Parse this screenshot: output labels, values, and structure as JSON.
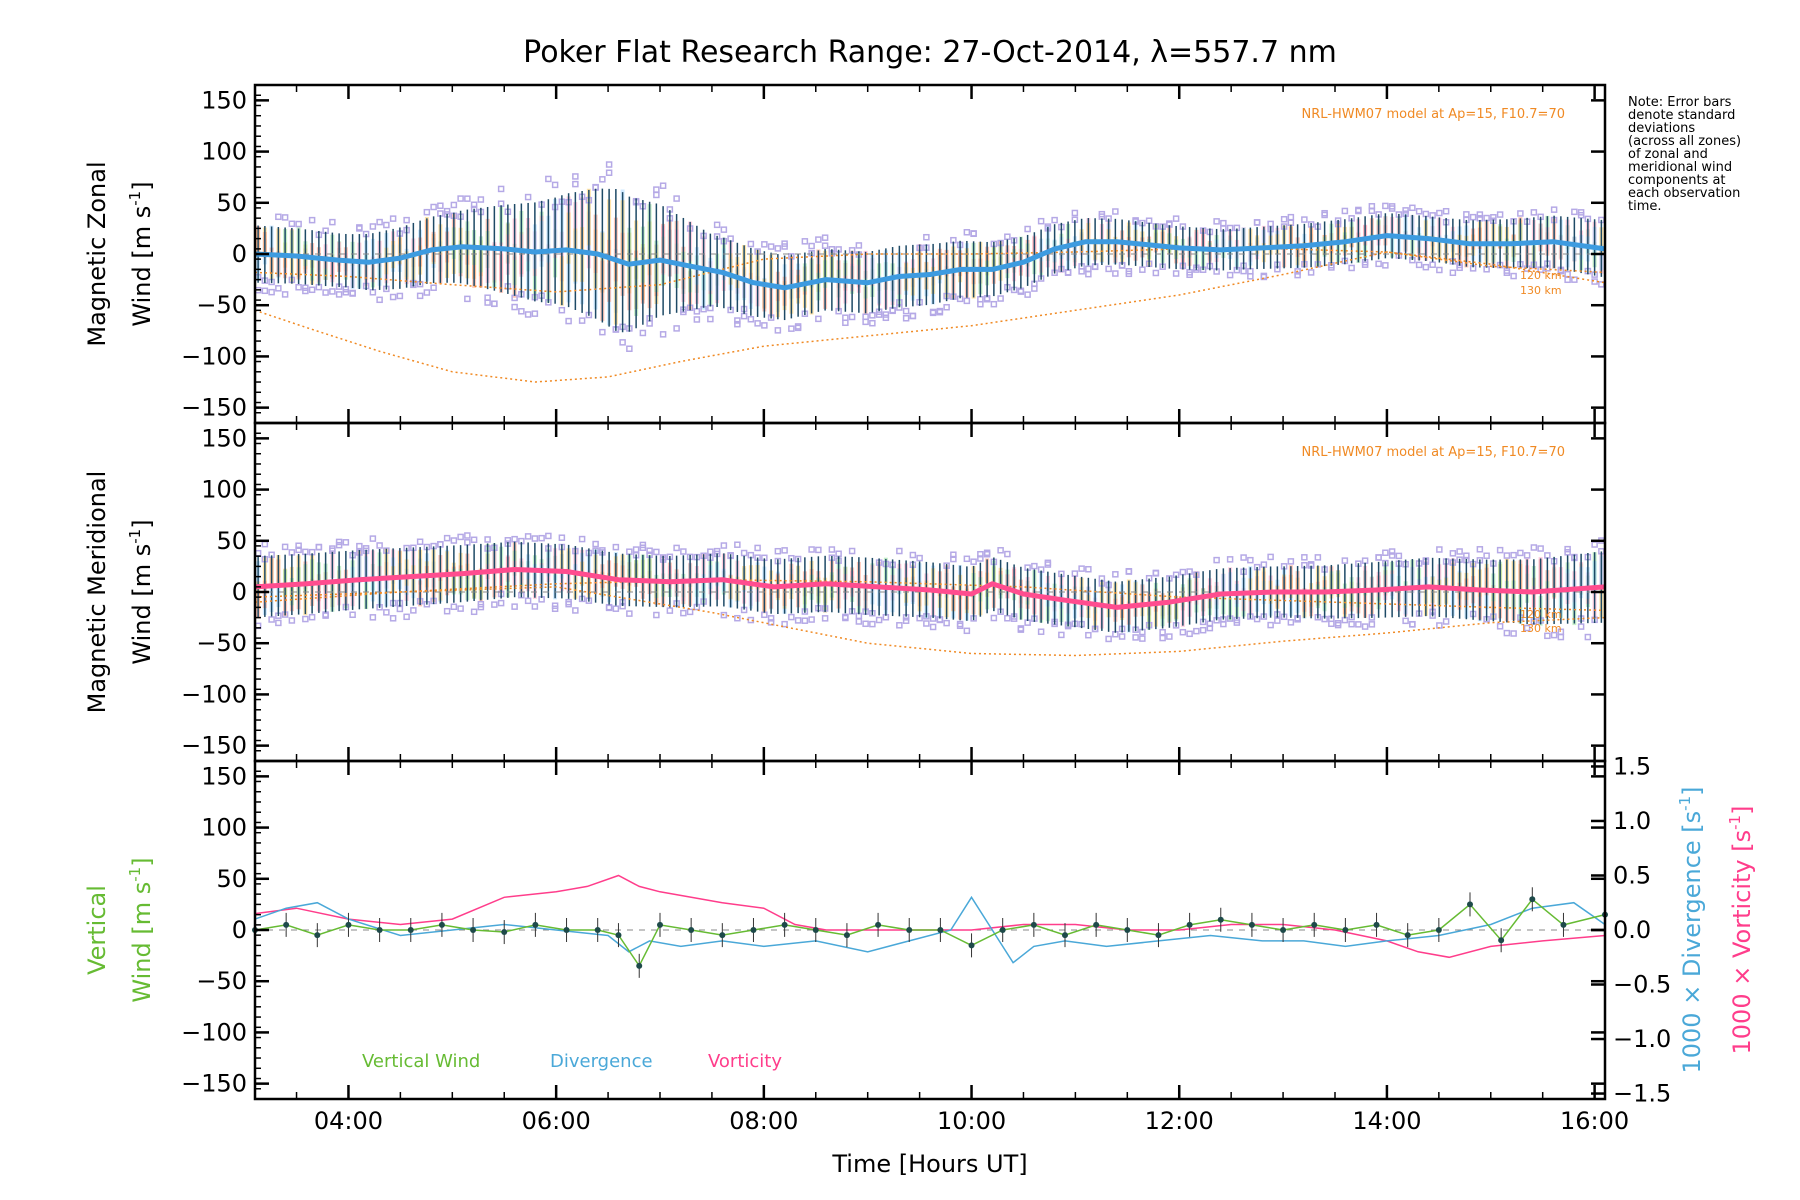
{
  "figure": {
    "title": "Poker Flat Research Range: 27-Oct-2014, λ=557.7 nm",
    "xlabel": "Time [Hours UT]",
    "note": [
      "Note: Error bars",
      "denote standard",
      "deviations",
      "(across all zones)",
      "of zonal and",
      "meridional wind",
      "components at",
      "each observation",
      "time."
    ]
  },
  "colors": {
    "zonal": "#3d9be0",
    "meridional": "#ff4d8f",
    "vertical": "#66bb33",
    "divergence": "#4aa8d8",
    "vorticity": "#ff3d8b",
    "model": "#f08a24",
    "scatter": "#b5a9e6",
    "errorbar": "#1e4a66"
  },
  "panels": {
    "zonal": {
      "ylabel_line1": "Magnetic Zonal",
      "ylabel_line2": "Wind",
      "ylabel_units": "[m s",
      "ylabel_sup": "-1",
      "ylabel_close": "]",
      "model_label": "NRL-HWM07 model at Ap=15, F10.7=70",
      "model_alt_labels": [
        "120 km",
        "130 km"
      ]
    },
    "meridional": {
      "ylabel_line1": "Magnetic Meridional",
      "ylabel_line2": "Wind",
      "ylabel_units": "[m s",
      "ylabel_sup": "-1",
      "ylabel_close": "]",
      "model_label": "NRL-HWM07 model at Ap=15, F10.7=70",
      "model_alt_labels": [
        "120 km",
        "130 km"
      ]
    },
    "vertical": {
      "ylabel_line1": "Vertical",
      "ylabel_line2": "Wind",
      "ylabel_units": "[m s",
      "ylabel_sup": "-1",
      "ylabel_close": "]",
      "right_label_div": "1000 × Divergence",
      "right_label_vort": "1000 × Vorticity",
      "right_units": "[s",
      "right_sup": "-1",
      "right_close": "]",
      "legend": [
        "Vertical Wind",
        "Divergence",
        "Vorticity"
      ]
    }
  },
  "chart_data": [
    {
      "type": "line",
      "panel": "zonal",
      "xlabel": "",
      "ylabel": "Magnetic Zonal Wind [m s-1]",
      "xlim": [
        3.1,
        16.1
      ],
      "ylim": [
        -165,
        165
      ],
      "xticks": [
        "04:00",
        "06:00",
        "08:00",
        "10:00",
        "12:00",
        "14:00",
        "16:00"
      ],
      "xtick_values": [
        4,
        6,
        8,
        10,
        12,
        14,
        16
      ],
      "yticks": [
        -150,
        -100,
        -50,
        0,
        50,
        100,
        150
      ],
      "series": [
        {
          "role": "mean",
          "x": [
            3.1,
            3.5,
            3.9,
            4.2,
            4.5,
            4.8,
            5.1,
            5.5,
            5.8,
            6.1,
            6.4,
            6.7,
            7.0,
            7.3,
            7.6,
            7.9,
            8.2,
            8.6,
            9.0,
            9.3,
            9.6,
            9.9,
            10.2,
            10.5,
            10.8,
            11.1,
            11.4,
            11.7,
            12.0,
            12.4,
            12.8,
            13.2,
            13.6,
            14.0,
            14.4,
            14.8,
            15.2,
            15.6,
            16.1
          ],
          "y": [
            0,
            -2,
            -6,
            -8,
            -4,
            4,
            7,
            5,
            2,
            4,
            0,
            -10,
            -6,
            -12,
            -18,
            -28,
            -33,
            -25,
            -28,
            -22,
            -20,
            -15,
            -15,
            -8,
            5,
            12,
            12,
            9,
            6,
            4,
            6,
            8,
            12,
            18,
            15,
            10,
            10,
            12,
            5
          ]
        },
        {
          "role": "error_halfwidth",
          "x": [
            3.1,
            4.0,
            5.0,
            6.0,
            6.6,
            7.5,
            8.5,
            9.5,
            10.5,
            11.5,
            12.5,
            13.5,
            14.5,
            15.5,
            16.1
          ],
          "y": [
            28,
            26,
            34,
            52,
            70,
            35,
            30,
            30,
            25,
            22,
            20,
            22,
            22,
            25,
            28
          ]
        },
        {
          "role": "model_120km",
          "x": [
            3.1,
            4.0,
            5.0,
            6.0,
            7.0,
            8.0,
            9.0,
            10.0,
            11.0,
            12.0,
            13.0,
            14.0,
            15.0,
            16.1
          ],
          "y": [
            -18,
            -22,
            -30,
            -37,
            -30,
            -5,
            0,
            0,
            2,
            5,
            5,
            2,
            -12,
            -18
          ]
        },
        {
          "role": "model_130km",
          "x": [
            3.1,
            3.6,
            4.3,
            5.0,
            5.8,
            6.5,
            7.2,
            8.0,
            9.0,
            10.0,
            11.0,
            12.0,
            13.0,
            14.0,
            15.0,
            16.1
          ],
          "y": [
            -55,
            -72,
            -95,
            -115,
            -125,
            -120,
            -105,
            -90,
            -80,
            -70,
            -55,
            -40,
            -20,
            2,
            -10,
            -28
          ]
        }
      ]
    },
    {
      "type": "line",
      "panel": "meridional",
      "xlabel": "",
      "ylabel": "Magnetic Meridional Wind [m s-1]",
      "xlim": [
        3.1,
        16.1
      ],
      "ylim": [
        -165,
        165
      ],
      "xticks": [
        "04:00",
        "06:00",
        "08:00",
        "10:00",
        "12:00",
        "14:00",
        "16:00"
      ],
      "xtick_values": [
        4,
        6,
        8,
        10,
        12,
        14,
        16
      ],
      "yticks": [
        -150,
        -100,
        -50,
        0,
        50,
        100,
        150
      ],
      "series": [
        {
          "role": "mean",
          "x": [
            3.1,
            3.6,
            4.1,
            4.6,
            5.1,
            5.6,
            6.1,
            6.6,
            7.1,
            7.6,
            8.1,
            8.6,
            9.1,
            9.6,
            10.0,
            10.2,
            10.5,
            10.9,
            11.4,
            11.9,
            12.4,
            12.9,
            13.4,
            13.9,
            14.4,
            14.9,
            15.4,
            16.1
          ],
          "y": [
            5,
            8,
            12,
            15,
            18,
            22,
            20,
            12,
            10,
            12,
            5,
            8,
            5,
            2,
            -2,
            8,
            -2,
            -8,
            -15,
            -10,
            -2,
            0,
            0,
            2,
            5,
            2,
            0,
            5
          ]
        },
        {
          "role": "error_halfwidth",
          "x": [
            3.1,
            5.0,
            7.0,
            9.0,
            11.0,
            13.0,
            15.0,
            16.1
          ],
          "y": [
            30,
            28,
            25,
            28,
            25,
            25,
            30,
            35
          ]
        },
        {
          "role": "model_120km",
          "x": [
            3.1,
            4.5,
            6.0,
            7.5,
            9.0,
            10.5,
            12.0,
            13.5,
            15.0,
            16.1
          ],
          "y": [
            -5,
            0,
            8,
            12,
            10,
            5,
            -5,
            -10,
            -15,
            -18
          ]
        },
        {
          "role": "model_130km",
          "x": [
            3.1,
            4.5,
            6.0,
            7.5,
            9.0,
            10.0,
            11.0,
            12.0,
            13.0,
            14.0,
            15.0,
            16.1
          ],
          "y": [
            -10,
            0,
            5,
            -20,
            -50,
            -60,
            -62,
            -58,
            -48,
            -40,
            -30,
            -25
          ]
        }
      ]
    },
    {
      "type": "line",
      "panel": "vertical",
      "xlabel": "Time [Hours UT]",
      "ylabel": "Vertical Wind [m s-1]",
      "y2label": "1000 × Divergence / 1000 × Vorticity [s-1]",
      "xlim": [
        3.1,
        16.1
      ],
      "ylim": [
        -165,
        165
      ],
      "y2lim": [
        -1.55,
        1.55
      ],
      "xticks": [
        "04:00",
        "06:00",
        "08:00",
        "10:00",
        "12:00",
        "14:00",
        "16:00"
      ],
      "xtick_values": [
        4,
        6,
        8,
        10,
        12,
        14,
        16
      ],
      "yticks": [
        -150,
        -100,
        -50,
        0,
        50,
        100,
        150
      ],
      "y2ticks": [
        -1.5,
        -1.0,
        -0.5,
        0.0,
        0.5,
        1.0,
        1.5
      ],
      "series": [
        {
          "name": "Vorticity",
          "axis": "right",
          "x": [
            3.1,
            3.5,
            4.0,
            4.5,
            5.0,
            5.5,
            6.0,
            6.3,
            6.6,
            6.8,
            7.0,
            7.3,
            7.6,
            8.0,
            8.3,
            8.6,
            9.0,
            9.5,
            10.0,
            10.5,
            11.0,
            11.5,
            12.0,
            12.5,
            13.0,
            13.5,
            14.0,
            14.3,
            14.6,
            15.0,
            15.5,
            16.1
          ],
          "y": [
            0.15,
            0.2,
            0.1,
            0.05,
            0.1,
            0.3,
            0.35,
            0.4,
            0.5,
            0.4,
            0.35,
            0.3,
            0.25,
            0.2,
            0.05,
            0.0,
            0.0,
            0.0,
            0.0,
            0.05,
            0.05,
            0.0,
            0.0,
            0.05,
            0.05,
            0.0,
            -0.1,
            -0.2,
            -0.25,
            -0.15,
            -0.1,
            -0.05
          ]
        },
        {
          "name": "Divergence",
          "axis": "right",
          "x": [
            3.1,
            3.4,
            3.7,
            4.0,
            4.5,
            5.0,
            5.5,
            6.0,
            6.5,
            6.7,
            6.9,
            7.2,
            7.6,
            8.0,
            8.5,
            9.0,
            9.4,
            9.8,
            10.0,
            10.2,
            10.4,
            10.6,
            10.9,
            11.3,
            11.8,
            12.3,
            12.8,
            13.2,
            13.6,
            14.0,
            14.5,
            15.0,
            15.4,
            15.8,
            16.1
          ],
          "y": [
            0.1,
            0.2,
            0.25,
            0.1,
            -0.05,
            0.0,
            0.05,
            0.0,
            -0.05,
            -0.2,
            -0.1,
            -0.15,
            -0.1,
            -0.15,
            -0.1,
            -0.2,
            -0.1,
            0.0,
            0.3,
            0.0,
            -0.3,
            -0.15,
            -0.1,
            -0.15,
            -0.1,
            -0.05,
            -0.1,
            -0.1,
            -0.15,
            -0.1,
            -0.05,
            0.05,
            0.2,
            0.25,
            0.05
          ]
        },
        {
          "name": "Vertical Wind",
          "axis": "left",
          "x": [
            3.1,
            3.4,
            3.7,
            4.0,
            4.3,
            4.6,
            4.9,
            5.2,
            5.5,
            5.8,
            6.1,
            6.4,
            6.6,
            6.8,
            7.0,
            7.3,
            7.6,
            7.9,
            8.2,
            8.5,
            8.8,
            9.1,
            9.4,
            9.7,
            10.0,
            10.3,
            10.6,
            10.9,
            11.2,
            11.5,
            11.8,
            12.1,
            12.4,
            12.7,
            13.0,
            13.3,
            13.6,
            13.9,
            14.2,
            14.5,
            14.8,
            15.1,
            15.4,
            15.7,
            16.1
          ],
          "y": [
            0,
            5,
            -5,
            5,
            0,
            0,
            5,
            0,
            -2,
            5,
            0,
            0,
            -5,
            -35,
            5,
            0,
            -5,
            0,
            5,
            0,
            -5,
            5,
            0,
            0,
            -15,
            0,
            5,
            -5,
            5,
            0,
            -5,
            5,
            10,
            5,
            0,
            5,
            0,
            5,
            -5,
            0,
            25,
            -10,
            30,
            5,
            15
          ]
        }
      ]
    }
  ]
}
